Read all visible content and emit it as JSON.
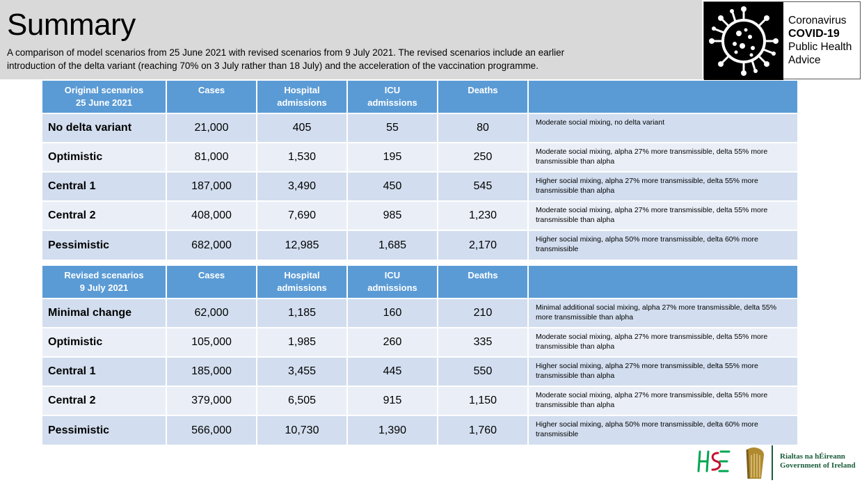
{
  "header": {
    "title": "Summary",
    "subtitle_line1": "A comparison of model scenarios from 25 June 2021 with revised scenarios from 9 July 2021.  The revised scenarios include an earlier",
    "subtitle_line2": "introduction of the delta variant (reaching 70% on 3 July rather than 18 July) and the acceleration of the vaccination programme."
  },
  "logo": {
    "line1": "Coronavirus",
    "line2": "COVID-19",
    "line3": "Public Health",
    "line4": "Advice"
  },
  "table_original": {
    "headers": {
      "scenario_line1": "Original scenarios",
      "scenario_line2": "25 June 2021",
      "cases": "Cases",
      "hospital_line1": "Hospital",
      "hospital_line2": "admissions",
      "icu_line1": "ICU",
      "icu_line2": "admissions",
      "deaths": "Deaths",
      "notes": ""
    },
    "rows": [
      {
        "name": "No delta variant",
        "cases": "21,000",
        "hospital": "405",
        "icu": "55",
        "deaths": "80",
        "desc": "Moderate social mixing, no delta variant"
      },
      {
        "name": "Optimistic",
        "cases": "81,000",
        "hospital": "1,530",
        "icu": "195",
        "deaths": "250",
        "desc": "Moderate social mixing, alpha 27% more transmissible, delta 55% more transmissible than alpha"
      },
      {
        "name": "Central 1",
        "cases": "187,000",
        "hospital": "3,490",
        "icu": "450",
        "deaths": "545",
        "desc": "Higher social mixing, alpha 27% more transmissible, delta 55% more transmissible than alpha"
      },
      {
        "name": "Central 2",
        "cases": "408,000",
        "hospital": "7,690",
        "icu": "985",
        "deaths": "1,230",
        "desc": "Moderate social mixing, alpha 27% more transmissible, delta 55% more transmissible than alpha"
      },
      {
        "name": "Pessimistic",
        "cases": "682,000",
        "hospital": "12,985",
        "icu": "1,685",
        "deaths": "2,170",
        "desc": "Higher social mixing, alpha 50% more transmissible, delta 60% more transmissible"
      }
    ]
  },
  "table_revised": {
    "headers": {
      "scenario_line1": "Revised scenarios",
      "scenario_line2": "9 July 2021",
      "cases": "Cases",
      "hospital_line1": "Hospital",
      "hospital_line2": "admissions",
      "icu_line1": "ICU",
      "icu_line2": "admissions",
      "deaths": "Deaths",
      "notes": ""
    },
    "rows": [
      {
        "name": "Minimal change",
        "cases": "62,000",
        "hospital": "1,185",
        "icu": "160",
        "deaths": "210",
        "desc": "Minimal additional social mixing, alpha 27% more transmissible, delta 55% more transmissible than alpha"
      },
      {
        "name": "Optimistic",
        "cases": "105,000",
        "hospital": "1,985",
        "icu": "260",
        "deaths": "335",
        "desc": "Moderate social mixing, alpha 27% more transmissible, delta 55% more transmissible than alpha"
      },
      {
        "name": "Central 1",
        "cases": "185,000",
        "hospital": "3,455",
        "icu": "445",
        "deaths": "550",
        "desc": "Higher social mixing, alpha 27% more transmissible, delta 55% more transmissible than alpha"
      },
      {
        "name": "Central 2",
        "cases": "379,000",
        "hospital": "6,505",
        "icu": "915",
        "deaths": "1,150",
        "desc": "Moderate social mixing, alpha 27% more transmissible, delta 55% more transmissible than alpha"
      },
      {
        "name": "Pessimistic",
        "cases": "566,000",
        "hospital": "10,730",
        "icu": "1,390",
        "deaths": "1,760",
        "desc": "Higher social mixing, alpha 50% more transmissible, delta 60% more transmissible"
      }
    ]
  },
  "footer": {
    "gov_line1": "Rialtas na hÉireann",
    "gov_line2": "Government of Ireland"
  },
  "colors": {
    "header_bg": "#d9d9d9",
    "table_header": "#5b9bd5",
    "row_odd": "#d2deef",
    "row_even": "#eaeff7",
    "gov_green": "#1a5c3a",
    "hse_green": "#00a651",
    "hse_pink": "#c8102e"
  },
  "icons": {
    "logo_virus": "coronavirus-icon",
    "hse": "hse-logo-icon",
    "harp": "harp-emblem-icon"
  }
}
